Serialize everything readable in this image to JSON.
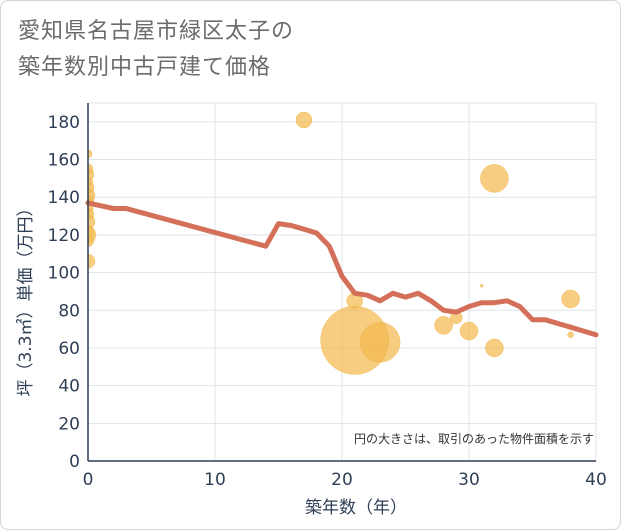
{
  "title_lines": [
    "愛知県名古屋市緑区太子の",
    "築年数別中古戸建て価格"
  ],
  "chart_data": {
    "type": "scatter",
    "xlabel": "築年数（年）",
    "ylabel": "坪（3.3㎡）単価（万円）",
    "xlim": [
      0,
      40
    ],
    "ylim": [
      0,
      190
    ],
    "xticks": [
      0,
      10,
      20,
      30,
      40
    ],
    "yticks": [
      0,
      20,
      40,
      60,
      80,
      100,
      120,
      140,
      160,
      180
    ],
    "note": "円の大きさは、取引のあった物件面積を示す",
    "colors": {
      "bubble": "#f2b84b",
      "line": "#d4705a",
      "grid": "#dfe3e8"
    },
    "points": [
      {
        "x": 0,
        "y": 163,
        "size": 4
      },
      {
        "x": 0,
        "y": 155,
        "size": 5
      },
      {
        "x": 0,
        "y": 152,
        "size": 6
      },
      {
        "x": 0,
        "y": 148,
        "size": 5
      },
      {
        "x": 0,
        "y": 145,
        "size": 6
      },
      {
        "x": 0,
        "y": 141,
        "size": 7
      },
      {
        "x": 0,
        "y": 138,
        "size": 6
      },
      {
        "x": 0,
        "y": 134,
        "size": 5
      },
      {
        "x": 0,
        "y": 131,
        "size": 6
      },
      {
        "x": 0,
        "y": 127,
        "size": 7
      },
      {
        "x": 0,
        "y": 122,
        "size": 6
      },
      {
        "x": 0,
        "y": 120,
        "size": 8
      },
      {
        "x": 0,
        "y": 117,
        "size": 6
      },
      {
        "x": 0,
        "y": 106,
        "size": 7
      },
      {
        "x": 17,
        "y": 181,
        "size": 8
      },
      {
        "x": 21,
        "y": 85,
        "size": 8
      },
      {
        "x": 21,
        "y": 64,
        "size": 34
      },
      {
        "x": 23,
        "y": 63,
        "size": 20
      },
      {
        "x": 28,
        "y": 72,
        "size": 9
      },
      {
        "x": 29,
        "y": 76,
        "size": 6
      },
      {
        "x": 30,
        "y": 69,
        "size": 9
      },
      {
        "x": 31,
        "y": 93,
        "size": 1.5
      },
      {
        "x": 32,
        "y": 150,
        "size": 14
      },
      {
        "x": 32,
        "y": 60,
        "size": 9
      },
      {
        "x": 38,
        "y": 86,
        "size": 9
      },
      {
        "x": 38,
        "y": 67,
        "size": 3
      }
    ],
    "trend": {
      "x": [
        0,
        2,
        3,
        14,
        15,
        16,
        17,
        18,
        19,
        20,
        21,
        22,
        23,
        24,
        25,
        26,
        27,
        28,
        29,
        30,
        31,
        32,
        33,
        34,
        35,
        36,
        37,
        38,
        39,
        40
      ],
      "y": [
        137,
        134,
        134,
        114,
        126,
        125,
        123,
        121,
        114,
        98,
        89,
        88,
        85,
        89,
        87,
        89,
        85,
        80,
        79,
        82,
        84,
        84,
        85,
        82,
        75,
        75,
        73,
        71,
        69,
        67
      ]
    }
  }
}
